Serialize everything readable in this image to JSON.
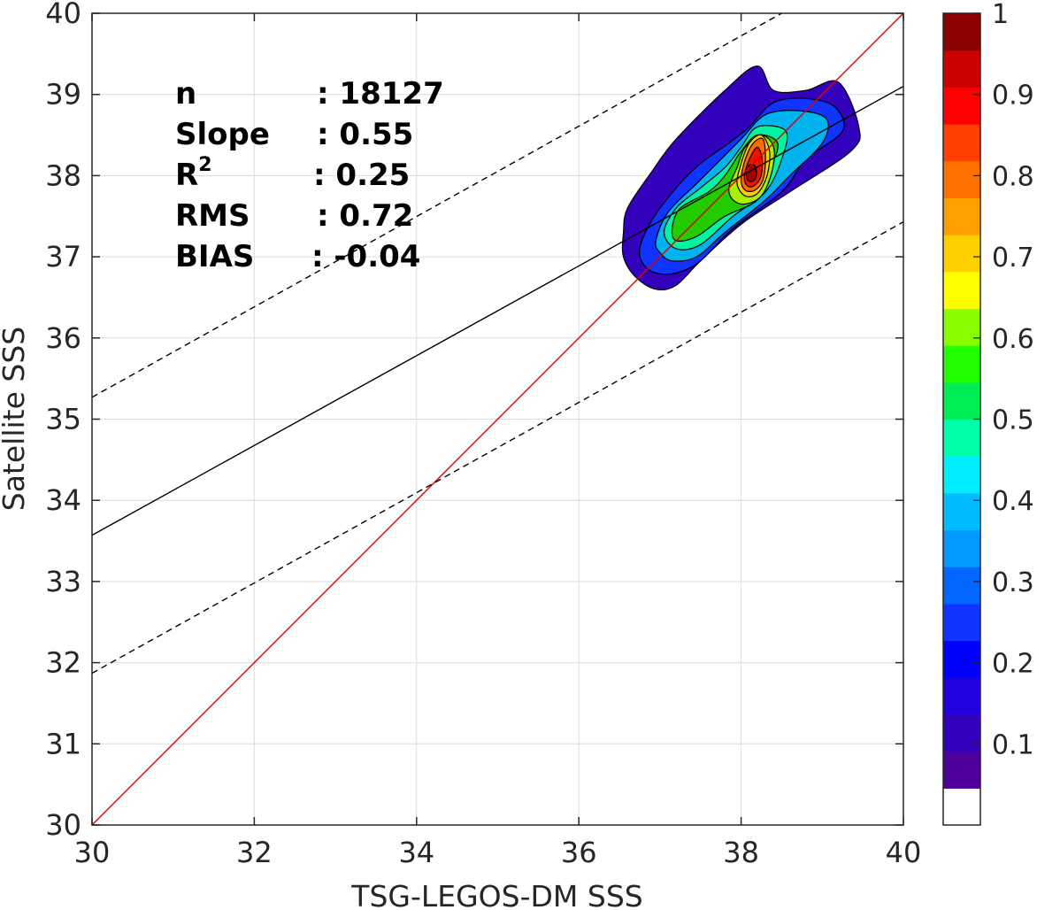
{
  "chart_data": {
    "type": "contour",
    "xlabel": "TSG-LEGOS-DM SSS",
    "ylabel": "Satellite SSS",
    "xlim": [
      30,
      40
    ],
    "ylim": [
      30,
      40
    ],
    "x_ticks": [
      "30",
      "32",
      "34",
      "36",
      "38",
      "40"
    ],
    "y_ticks": [
      "30",
      "31",
      "32",
      "33",
      "34",
      "35",
      "36",
      "37",
      "38",
      "39",
      "40"
    ],
    "grid": true,
    "stats": [
      {
        "label": "n",
        "value": ": 18127"
      },
      {
        "label": "Slope",
        "value": ": 0.55"
      },
      {
        "label": "R",
        "sup": "2",
        "value": ": 0.25"
      },
      {
        "label": "RMS",
        "value": ": 0.72"
      },
      {
        "label": "BIAS",
        "value": ": -0.04"
      }
    ],
    "lines": [
      {
        "kind": "one-to-one",
        "color": "#e00000",
        "style": "solid",
        "x": [
          30,
          40
        ],
        "y": [
          30,
          40
        ]
      },
      {
        "kind": "regression",
        "color": "#000000",
        "style": "solid",
        "x": [
          30,
          40
        ],
        "y": [
          33.57,
          39.1
        ]
      },
      {
        "kind": "upper-bound",
        "color": "#000000",
        "style": "dashed",
        "x": [
          30,
          38.5
        ],
        "y": [
          35.27,
          40
        ]
      },
      {
        "kind": "lower-bound",
        "color": "#000000",
        "style": "dashed",
        "x": [
          30,
          40
        ],
        "y": [
          31.87,
          37.43
        ]
      }
    ],
    "density_levels": [
      {
        "level": 0.05,
        "color": "#3300bb",
        "outline": [
          [
            36.55,
            37.3
          ],
          [
            36.6,
            37.6
          ],
          [
            36.9,
            38.05
          ],
          [
            37.2,
            38.45
          ],
          [
            37.8,
            39.05
          ],
          [
            38.2,
            39.35
          ],
          [
            38.4,
            39.05
          ],
          [
            38.8,
            39.05
          ],
          [
            39.2,
            39.15
          ],
          [
            39.45,
            38.6
          ],
          [
            39.35,
            38.3
          ],
          [
            38.6,
            37.8
          ],
          [
            38.0,
            37.4
          ],
          [
            37.5,
            36.95
          ],
          [
            37.2,
            36.65
          ],
          [
            36.95,
            36.6
          ],
          [
            36.7,
            36.75
          ],
          [
            36.55,
            37.0
          ]
        ]
      },
      {
        "level": 0.1,
        "color": "#1133ff",
        "outline": [
          [
            36.75,
            37.1
          ],
          [
            36.9,
            37.45
          ],
          [
            37.2,
            37.85
          ],
          [
            37.5,
            38.15
          ],
          [
            37.85,
            38.4
          ],
          [
            38.1,
            38.6
          ],
          [
            38.4,
            38.9
          ],
          [
            38.8,
            38.95
          ],
          [
            39.15,
            38.85
          ],
          [
            39.25,
            38.55
          ],
          [
            38.8,
            38.2
          ],
          [
            38.5,
            37.8
          ],
          [
            37.9,
            37.35
          ],
          [
            37.5,
            36.95
          ],
          [
            37.2,
            36.8
          ],
          [
            36.95,
            36.8
          ],
          [
            36.8,
            36.9
          ]
        ]
      },
      {
        "level": 0.2,
        "color": "#00b2ee",
        "outline": [
          [
            36.95,
            37.2
          ],
          [
            37.1,
            37.55
          ],
          [
            37.45,
            37.9
          ],
          [
            37.75,
            38.2
          ],
          [
            38.0,
            38.45
          ],
          [
            38.3,
            38.75
          ],
          [
            38.7,
            38.8
          ],
          [
            39.05,
            38.7
          ],
          [
            39.0,
            38.4
          ],
          [
            38.6,
            38.0
          ],
          [
            38.3,
            37.7
          ],
          [
            37.8,
            37.3
          ],
          [
            37.45,
            37.0
          ],
          [
            37.15,
            36.95
          ],
          [
            37.0,
            37.05
          ]
        ]
      },
      {
        "level": 0.35,
        "color": "#00f5a0",
        "outline": [
          [
            37.05,
            37.3
          ],
          [
            37.2,
            37.6
          ],
          [
            37.5,
            37.85
          ],
          [
            37.8,
            38.1
          ],
          [
            38.0,
            38.35
          ],
          [
            38.2,
            38.6
          ],
          [
            38.55,
            38.55
          ],
          [
            38.5,
            38.2
          ],
          [
            38.3,
            37.8
          ],
          [
            37.9,
            37.5
          ],
          [
            37.5,
            37.15
          ],
          [
            37.2,
            37.1
          ]
        ]
      },
      {
        "level": 0.5,
        "color": "#22cc00",
        "outline": [
          [
            37.15,
            37.35
          ],
          [
            37.25,
            37.6
          ],
          [
            37.6,
            37.8
          ],
          [
            37.8,
            38.0
          ],
          [
            38.0,
            38.3
          ],
          [
            38.2,
            38.5
          ],
          [
            38.45,
            38.4
          ],
          [
            38.35,
            38.05
          ],
          [
            38.2,
            37.7
          ],
          [
            37.8,
            37.5
          ],
          [
            37.45,
            37.25
          ],
          [
            37.2,
            37.2
          ]
        ]
      },
      {
        "level": 0.6,
        "color": "#aaee00",
        "outline": [
          [
            37.85,
            37.85
          ],
          [
            37.95,
            38.1
          ],
          [
            38.05,
            38.35
          ],
          [
            38.25,
            38.5
          ],
          [
            38.4,
            38.35
          ],
          [
            38.38,
            38.05
          ],
          [
            38.25,
            37.75
          ],
          [
            38.05,
            37.65
          ],
          [
            37.9,
            37.7
          ]
        ]
      },
      {
        "level": 0.7,
        "color": "#ffd000",
        "outline": [
          [
            37.95,
            37.9
          ],
          [
            38.0,
            38.15
          ],
          [
            38.1,
            38.4
          ],
          [
            38.25,
            38.5
          ],
          [
            38.35,
            38.3
          ],
          [
            38.32,
            38.0
          ],
          [
            38.2,
            37.78
          ],
          [
            38.05,
            37.75
          ]
        ]
      },
      {
        "level": 0.8,
        "color": "#ff6a00",
        "outline": [
          [
            38.0,
            37.95
          ],
          [
            38.05,
            38.2
          ],
          [
            38.15,
            38.4
          ],
          [
            38.27,
            38.45
          ],
          [
            38.3,
            38.2
          ],
          [
            38.27,
            37.95
          ],
          [
            38.17,
            37.82
          ],
          [
            38.05,
            37.82
          ]
        ]
      },
      {
        "level": 0.9,
        "color": "#ee1100",
        "outline": [
          [
            38.04,
            38.0
          ],
          [
            38.1,
            38.2
          ],
          [
            38.2,
            38.35
          ],
          [
            38.26,
            38.2
          ],
          [
            38.24,
            37.98
          ],
          [
            38.15,
            37.87
          ],
          [
            38.07,
            37.88
          ]
        ]
      },
      {
        "level": 0.97,
        "color": "#a00000",
        "outline": [
          [
            38.06,
            38.05
          ],
          [
            38.1,
            38.13
          ],
          [
            38.17,
            38.12
          ],
          [
            38.19,
            38.0
          ],
          [
            38.14,
            37.93
          ],
          [
            38.08,
            37.95
          ]
        ]
      }
    ],
    "colorbar": {
      "range": [
        0,
        1
      ],
      "tick_labels": [
        "0.1",
        "0.2",
        "0.3",
        "0.4",
        "0.5",
        "0.6",
        "0.7",
        "0.8",
        "0.9",
        "1"
      ],
      "tick_values": [
        0.1,
        0.2,
        0.3,
        0.4,
        0.5,
        0.6,
        0.7,
        0.8,
        0.9,
        1.0
      ],
      "colors": [
        "#ffffff",
        "#4d0099",
        "#3300bb",
        "#2200dd",
        "#0000ff",
        "#1133ff",
        "#0066ff",
        "#0099ff",
        "#00bbff",
        "#00eeff",
        "#00ffaa",
        "#00ee55",
        "#22ff00",
        "#88ff00",
        "#ffff00",
        "#ffd000",
        "#ffa000",
        "#ff7000",
        "#ff4000",
        "#ff0000",
        "#cc0000",
        "#8b0000"
      ]
    }
  }
}
